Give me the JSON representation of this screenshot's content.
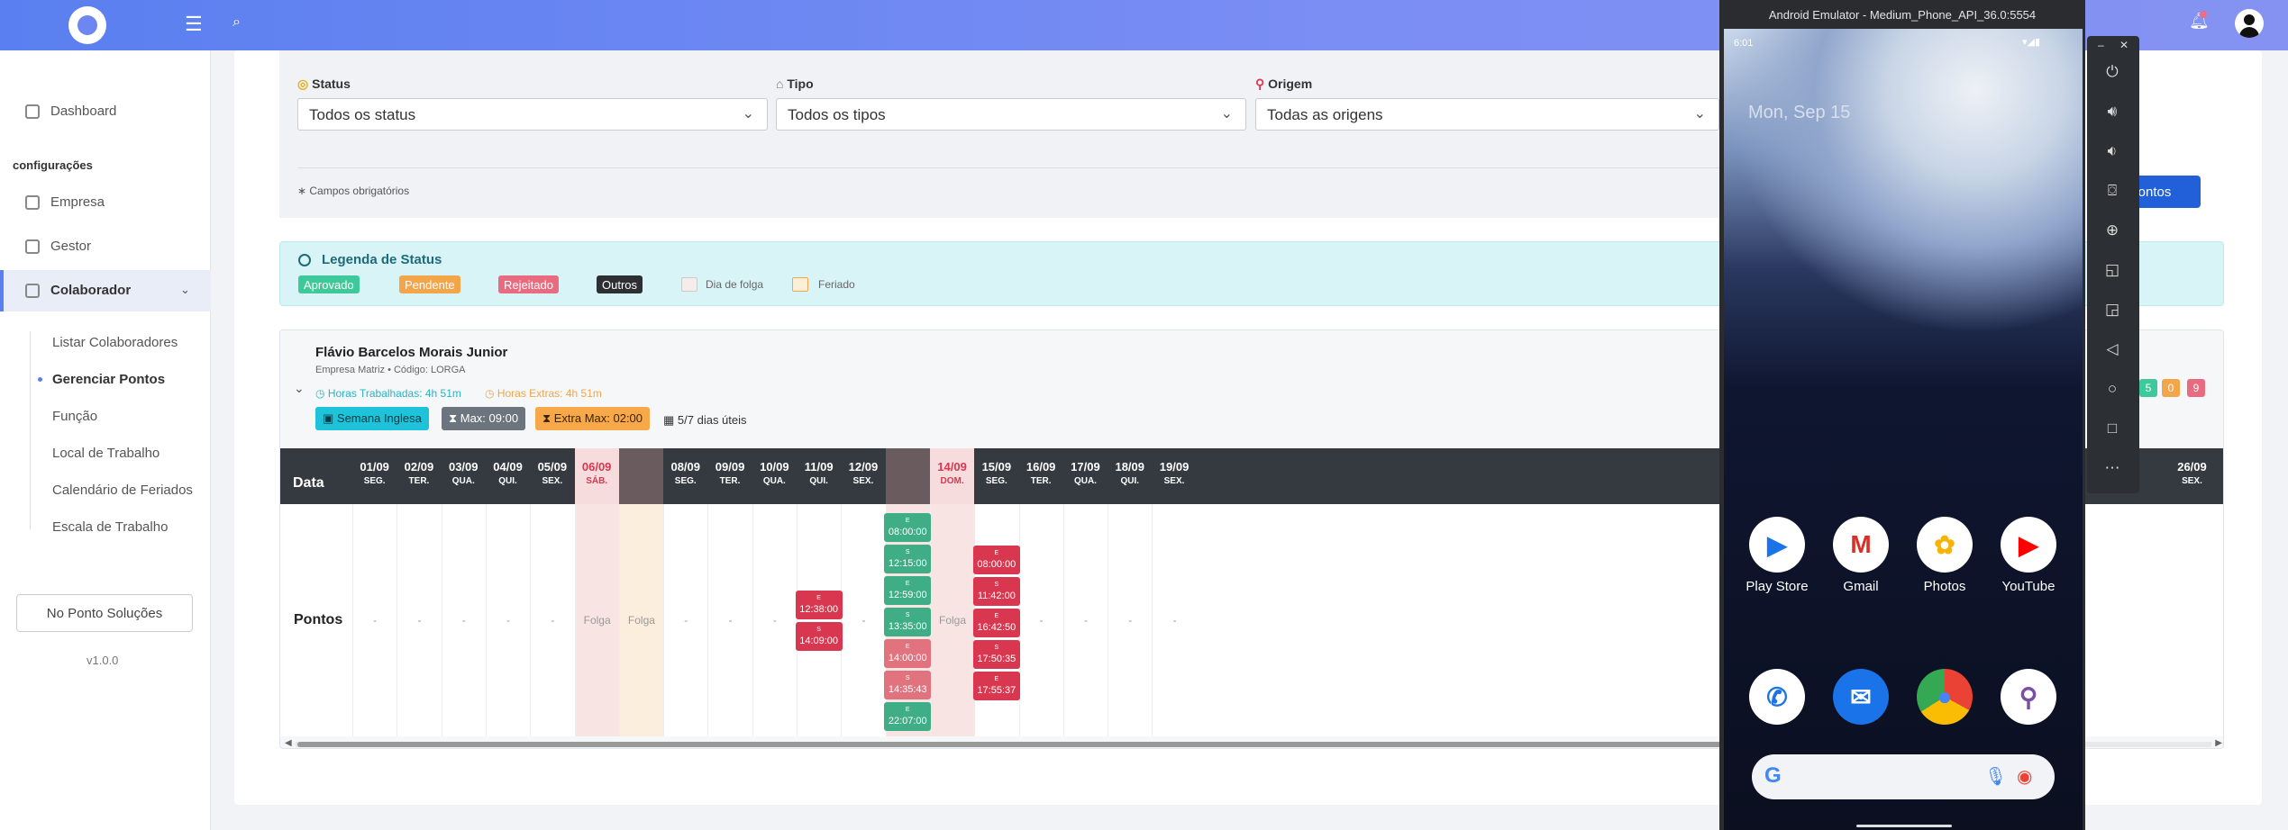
{
  "sidebar": {
    "items": [
      {
        "label": "Dashboard"
      },
      {
        "section": "configurações"
      },
      {
        "label": "Empresa"
      },
      {
        "label": "Gestor"
      },
      {
        "label": "Colaborador"
      }
    ],
    "subitems": [
      "Listar Colaboradores",
      "Gerenciar Pontos",
      "Função",
      "Local de Trabalho",
      "Calendário de Feriados",
      "Escala de Trabalho"
    ],
    "company_button": "No Ponto Soluções",
    "version": "v1.0.0"
  },
  "filters": {
    "status_label": "Status",
    "status_value": "Todos os status",
    "tipo_label": "Tipo",
    "tipo_value": "Todos os tipos",
    "origem_label": "Origem",
    "origem_value": "Todas as origens",
    "required_note": "Campos obrigatórios",
    "pontos_button": "Pontos"
  },
  "legend": {
    "title": "Legenda de Status",
    "approved": "Aprovado",
    "pending": "Pendente",
    "rejected": "Rejeitado",
    "others": "Outros",
    "day_off": "Dia de folga",
    "holiday": "Feriado"
  },
  "employee": {
    "name": "Flávio Barcelos Morais Junior",
    "subtitle": "Empresa Matriz • Código: LORGA",
    "hours_worked": "Horas Trabalhadas: 4h 51m",
    "hours_extra": "Horas Extras: 4h 51m",
    "tag_week": "Semana Inglesa",
    "tag_max": "Max: 09:00",
    "tag_extra_max": "Extra Max: 02:00",
    "work_days": "5/7 dias úteis",
    "badge_1": "5",
    "badge_2": "0",
    "badge_3": "9"
  },
  "table": {
    "header_label": "Data",
    "row_label": "Pontos",
    "columns": [
      {
        "date": "01/09",
        "day": "SEG.",
        "cell": "-"
      },
      {
        "date": "02/09",
        "day": "TER.",
        "cell": "-"
      },
      {
        "date": "03/09",
        "day": "QUA.",
        "cell": "-"
      },
      {
        "date": "04/09",
        "day": "QUI.",
        "cell": "-"
      },
      {
        "date": "05/09",
        "day": "SEX.",
        "cell": "-"
      },
      {
        "date": "06/09",
        "day": "SÁB.",
        "cell": "Folga"
      },
      {
        "date": "",
        "day": "",
        "cell": "Folga"
      },
      {
        "date": "08/09",
        "day": "SEG.",
        "cell": "-"
      },
      {
        "date": "09/09",
        "day": "TER.",
        "cell": "-"
      },
      {
        "date": "10/09",
        "day": "QUA.",
        "cell": "-"
      },
      {
        "date": "11/09",
        "day": "QUI.",
        "cell": ""
      },
      {
        "date": "12/09",
        "day": "SEX.",
        "cell": "-"
      },
      {
        "date": "",
        "day": "",
        "cell": ""
      },
      {
        "date": "14/09",
        "day": "DOM.",
        "cell": "Folga"
      },
      {
        "date": "15/09",
        "day": "SEG.",
        "cell": ""
      },
      {
        "date": "16/09",
        "day": "TER.",
        "cell": "-"
      },
      {
        "date": "17/09",
        "day": "QUA.",
        "cell": "-"
      },
      {
        "date": "18/09",
        "day": "QUI.",
        "cell": "-"
      },
      {
        "date": "19/09",
        "day": "SEX.",
        "cell": "-"
      }
    ],
    "last_column": {
      "date": "26/09",
      "day": "SEX."
    },
    "punches_11": [
      {
        "type": "E",
        "time": "12:38:00",
        "status": "rejected"
      },
      {
        "type": "S",
        "time": "14:09:00",
        "status": "rejected"
      }
    ],
    "punches_13": [
      {
        "type": "E",
        "time": "08:00:00",
        "status": "approved"
      },
      {
        "type": "S",
        "time": "12:15:00",
        "status": "approved"
      },
      {
        "type": "E",
        "time": "12:59:00",
        "status": "approved"
      },
      {
        "type": "S",
        "time": "13:35:00",
        "status": "approved"
      },
      {
        "type": "E",
        "time": "14:00:00",
        "status": "rejected_light"
      },
      {
        "type": "S",
        "time": "14:35:43",
        "status": "rejected_light"
      },
      {
        "type": "E",
        "time": "22:07:00",
        "status": "approved"
      }
    ],
    "punches_15": [
      {
        "type": "E",
        "time": "08:00:00",
        "status": "rejected"
      },
      {
        "type": "S",
        "time": "11:42:00",
        "status": "rejected"
      },
      {
        "type": "E",
        "time": "16:42:50",
        "status": "rejected"
      },
      {
        "type": "S",
        "time": "17:50:35",
        "status": "rejected"
      },
      {
        "type": "E",
        "time": "17:55:37",
        "status": "rejected"
      }
    ]
  },
  "emulator": {
    "title": "Android Emulator - Medium_Phone_API_36.0:5554",
    "time": "6:01",
    "date": "Mon, Sep 15",
    "apps_row1": [
      "Play Store",
      "Gmail",
      "Photos",
      "YouTube"
    ]
  },
  "colors": {
    "approved": "#3fae87",
    "pending": "#f3a54a",
    "rejected": "#d9374f",
    "rejected_light": "#e1737f",
    "accent": "#2160d8"
  }
}
